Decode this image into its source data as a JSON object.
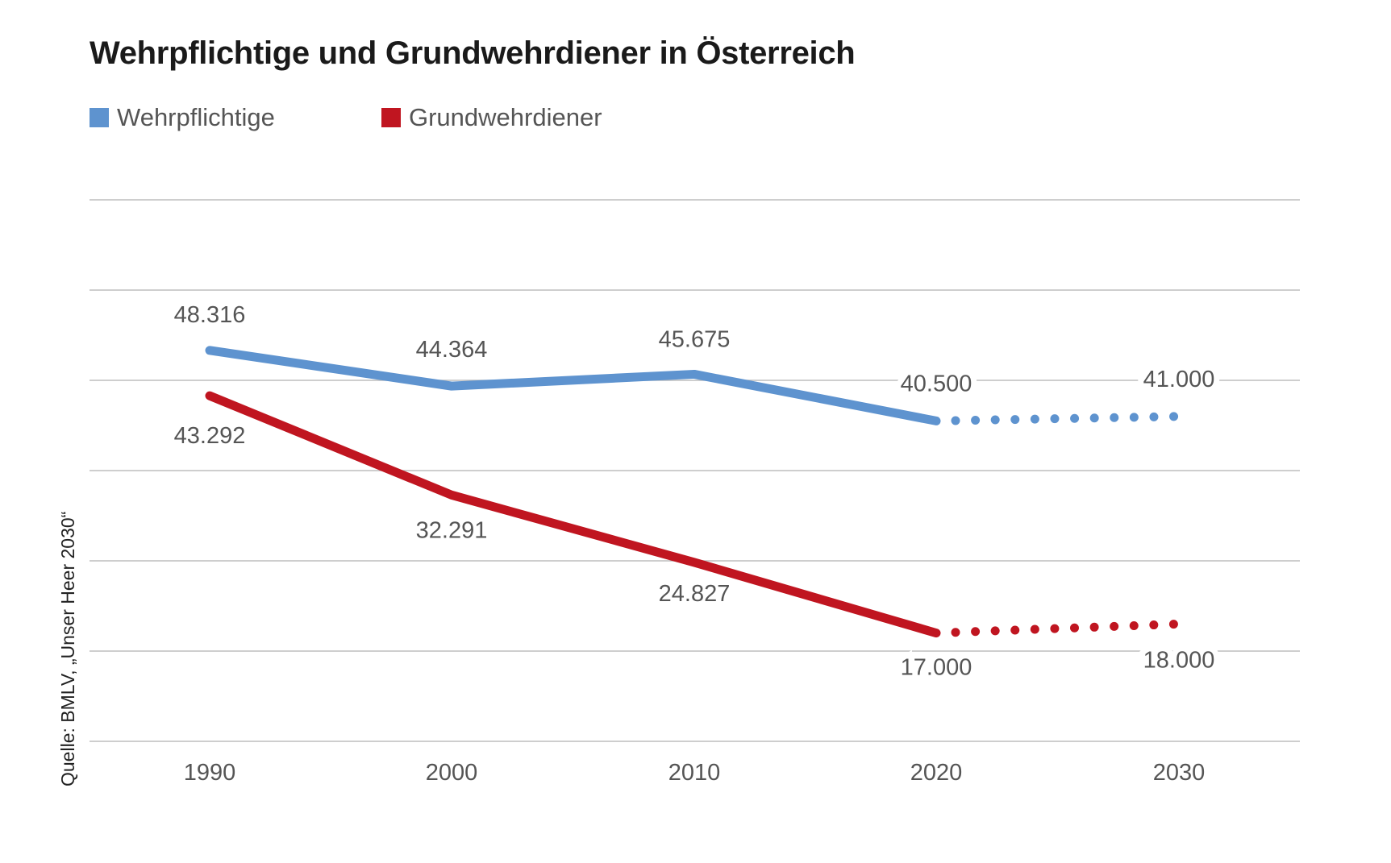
{
  "colors": {
    "wehrpflichtige": "#5e93cf",
    "grundwehrdiener": "#c01520",
    "grid": "#bdbdbd",
    "text": "#555555"
  },
  "chart_data": {
    "type": "line",
    "title": "Wehrpflichtige und Grundwehrdiener in Österreich",
    "source": "Quelle: BMLV, „Unser Heer 2030“",
    "categories": [
      "1990",
      "2000",
      "2010",
      "2020",
      "2030"
    ],
    "x": [
      1990,
      2000,
      2010,
      2020,
      2030
    ],
    "xlabel": "",
    "ylabel": "",
    "ylim": [
      5000,
      65000
    ],
    "ygrid": [
      5000,
      15000,
      25000,
      35000,
      45000,
      55000,
      65000
    ],
    "grid": true,
    "legend": "top-left",
    "series": [
      {
        "name": "Wehrpflichtige",
        "color": "#5e93cf",
        "values": [
          48316,
          44364,
          45675,
          40500,
          41000
        ],
        "labels": [
          "48.316",
          "44.364",
          "45.675",
          "40.500",
          "41.000"
        ],
        "projected_from": 2020,
        "label_side": [
          "above",
          "above",
          "above",
          "above",
          "above"
        ]
      },
      {
        "name": "Grundwehrdiener",
        "color": "#c01520",
        "values": [
          43292,
          32291,
          24827,
          17000,
          18000
        ],
        "labels": [
          "43.292",
          "32.291",
          "24.827",
          "17.000",
          "18.000"
        ],
        "projected_from": 2020,
        "label_side": [
          "below",
          "below",
          "below",
          "below",
          "below"
        ]
      }
    ]
  }
}
